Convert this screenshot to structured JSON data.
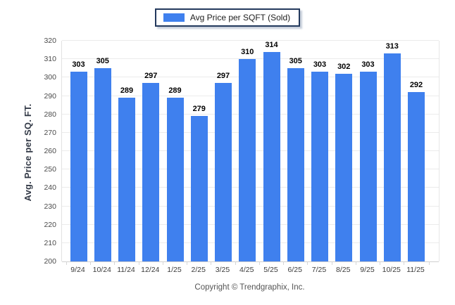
{
  "legend": {
    "label": "Avg Price per SQFT (Sold)",
    "swatch_color": "#3f80ee",
    "border_color": "#23395d"
  },
  "y_axis": {
    "title": "Avg. Price per SQ. FT."
  },
  "footer": {
    "copyright": "Copyright © Trendgraphix, Inc."
  },
  "colors": {
    "bar": "#3f80ee",
    "gridline": "#ebebeb",
    "baseline": "#cfcfcf",
    "value_label": "#000000",
    "tick_label": "#3c3c3c"
  },
  "chart_data": {
    "type": "bar",
    "title": "",
    "series_name": "Avg Price per SQFT (Sold)",
    "categories": [
      "9/24",
      "10/24",
      "11/24",
      "12/24",
      "1/25",
      "2/25",
      "3/25",
      "4/25",
      "5/25",
      "6/25",
      "7/25",
      "8/25",
      "9/25",
      "10/25",
      "11/25"
    ],
    "values": [
      303,
      305,
      289,
      297,
      289,
      279,
      297,
      310,
      314,
      305,
      303,
      302,
      303,
      313,
      292
    ],
    "xlabel": "",
    "ylabel": "Avg. Price per SQ. FT.",
    "ylim": [
      200,
      320
    ],
    "ytick_step": 10,
    "grid": true,
    "value_labels": true,
    "legend_position": "top-center"
  }
}
